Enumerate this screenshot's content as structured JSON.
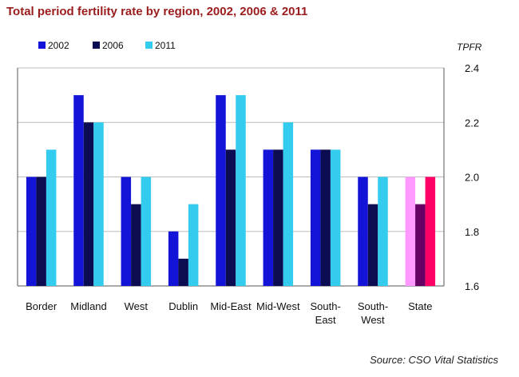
{
  "chart_data": {
    "type": "bar",
    "title": "Total period fertility rate by region, 2002, 2006 & 2011",
    "ylabel": "TPFR",
    "xlabel": "",
    "source": "Source: CSO Vital Statistics",
    "ylim": [
      1.6,
      2.4
    ],
    "yticks": [
      "1.6",
      "1.8",
      "2.0",
      "2.2",
      "2.4"
    ],
    "grid": true,
    "legend_position": "top-left",
    "categories": [
      [
        "Border"
      ],
      [
        "Midland"
      ],
      [
        "West"
      ],
      [
        "Dublin"
      ],
      [
        "Mid-East"
      ],
      [
        "Mid-West"
      ],
      [
        "South-",
        "East"
      ],
      [
        "South-",
        "West"
      ],
      [
        "State"
      ]
    ],
    "series": [
      {
        "name": "2002",
        "color": "#1414d9",
        "values": [
          2.0,
          2.3,
          2.0,
          1.8,
          2.3,
          2.1,
          2.1,
          2.0,
          2.0
        ]
      },
      {
        "name": "2006",
        "color": "#0c0c52",
        "values": [
          2.0,
          2.2,
          1.9,
          1.7,
          2.1,
          2.1,
          2.1,
          1.9,
          1.9
        ]
      },
      {
        "name": "2011",
        "color": "#33ccee",
        "values": [
          2.1,
          2.2,
          2.0,
          1.9,
          2.3,
          2.2,
          2.1,
          2.0,
          2.0
        ]
      }
    ],
    "highlight_colors": [
      "#ff99ff",
      "#660066",
      "#ff0066"
    ]
  }
}
